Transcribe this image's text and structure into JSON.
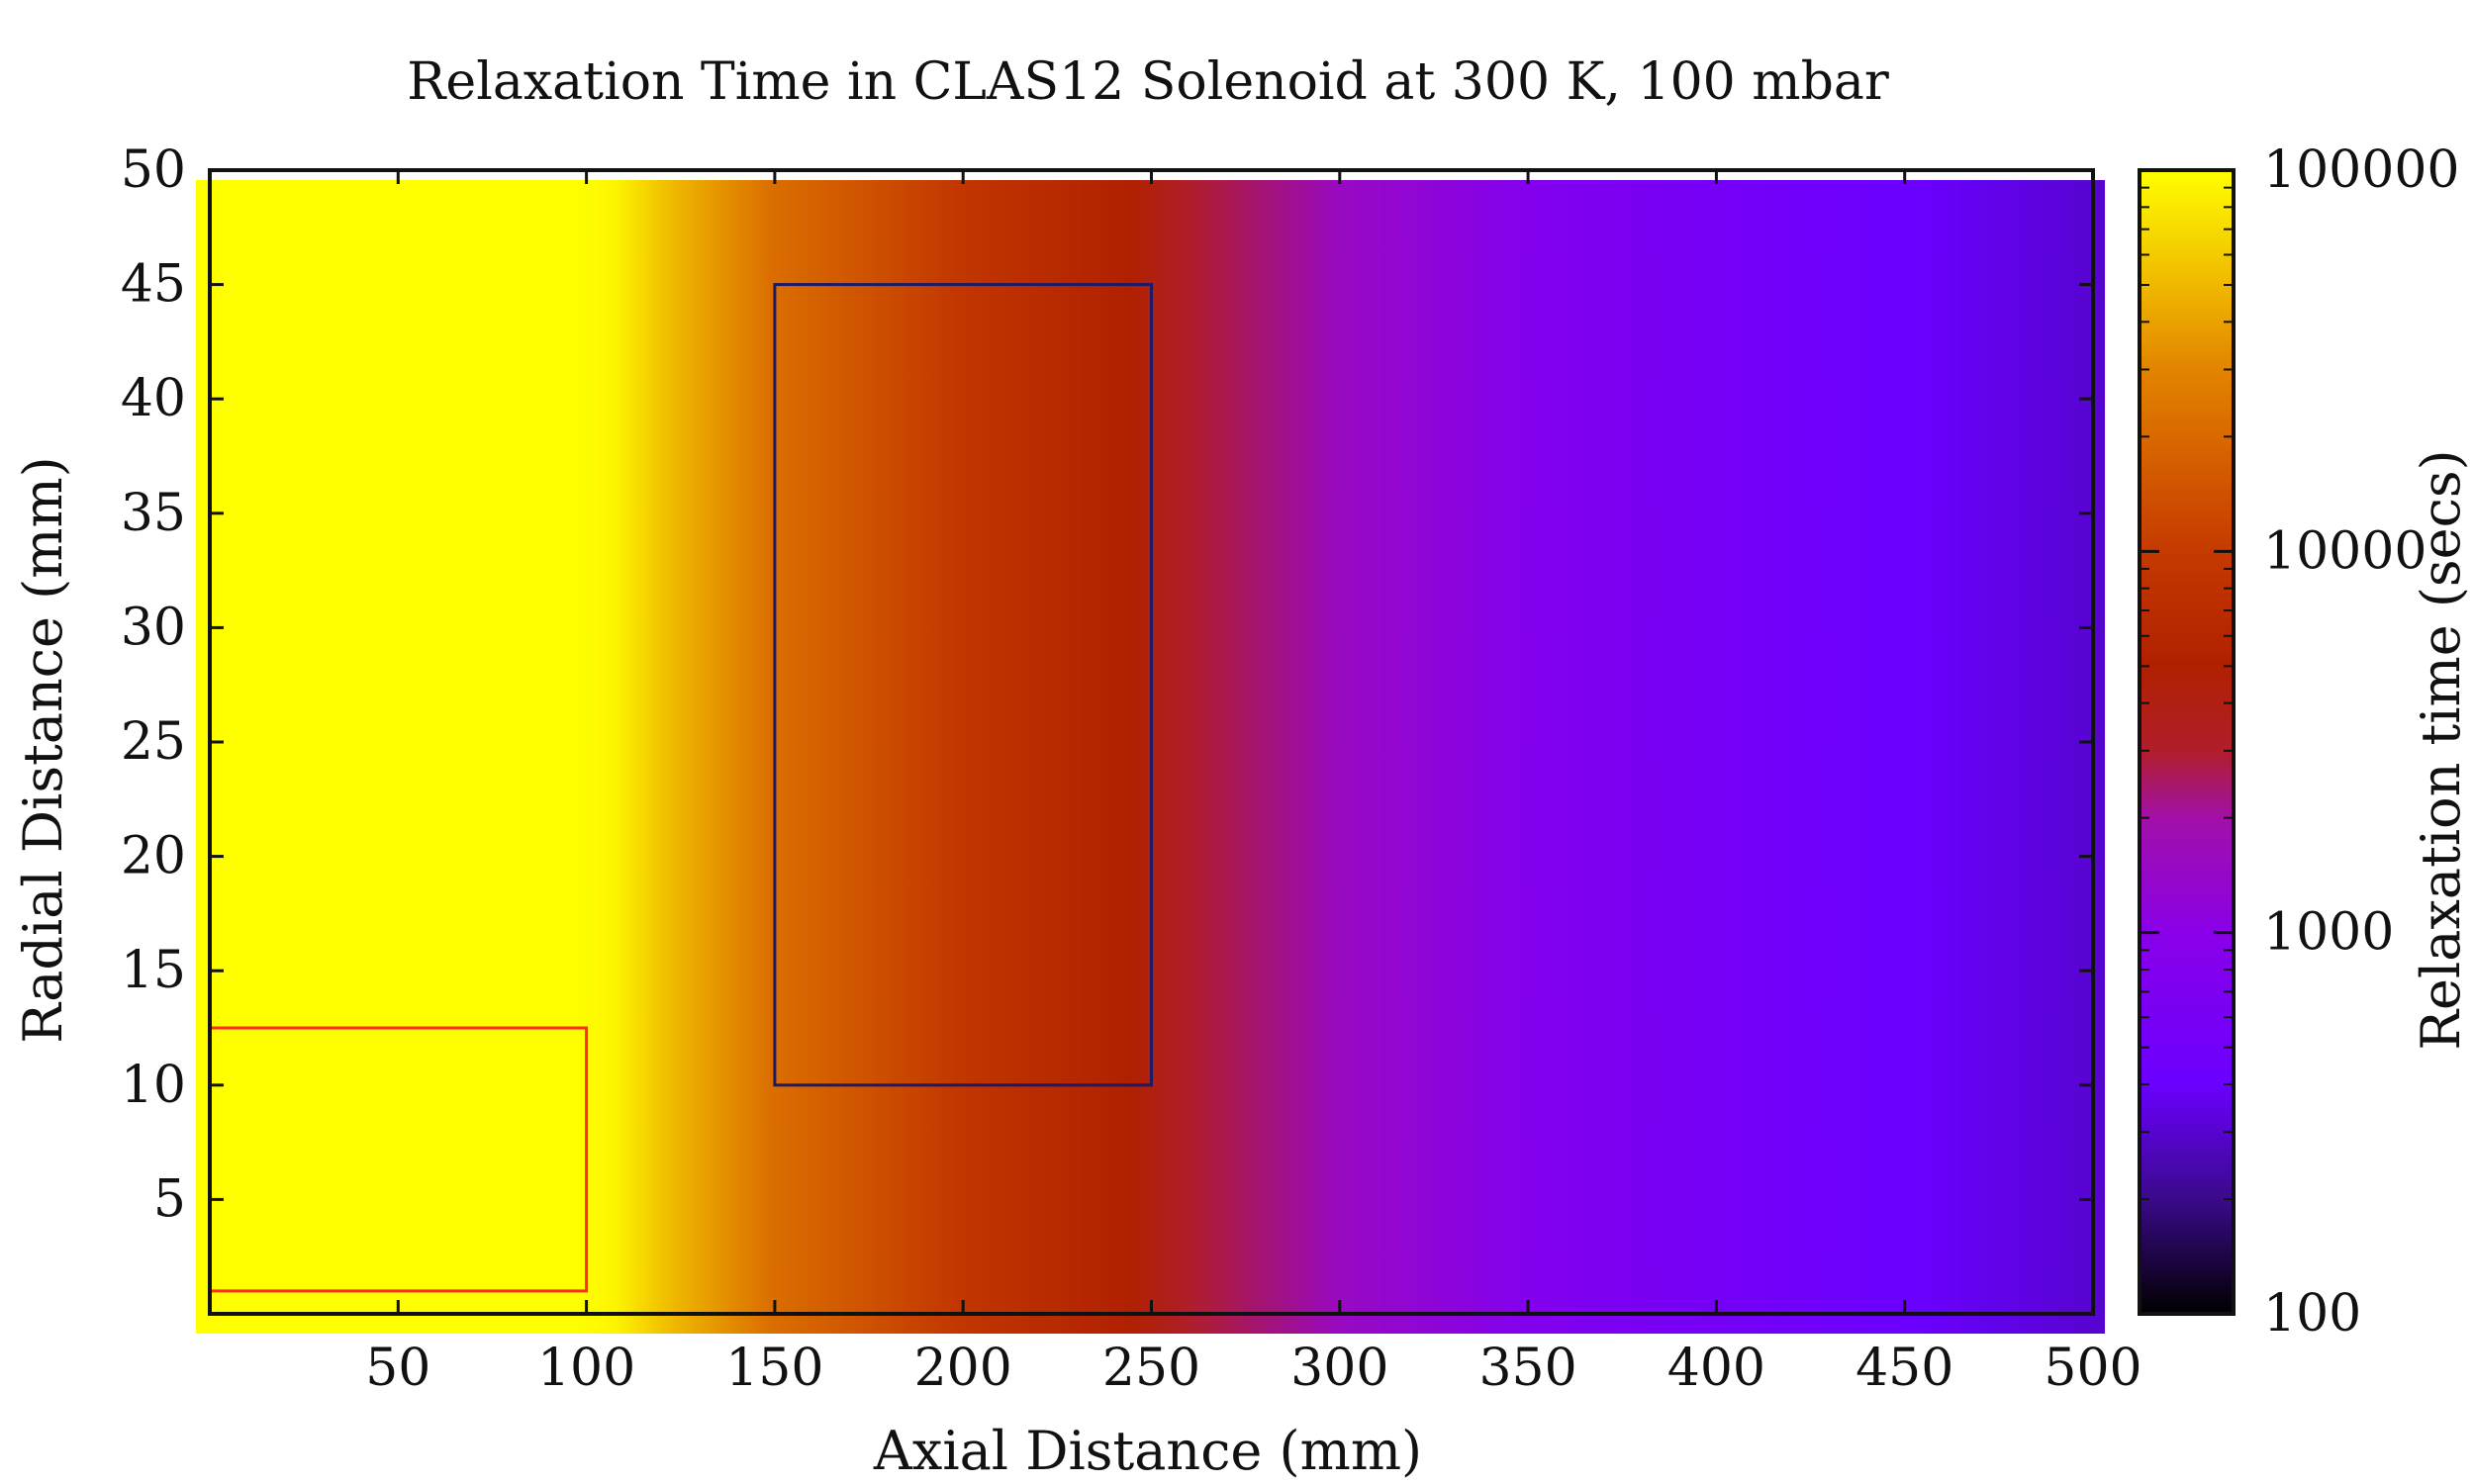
{
  "chart_data": {
    "type": "heatmap",
    "title": "Relaxation Time in CLAS12 Solenoid at 300 K, 100 mbar",
    "xlabel": "Axial Distance (mm)",
    "ylabel": "Radial Distance (mm)",
    "colorbar_label": "Relaxation time (secs)",
    "xlim": [
      0,
      500
    ],
    "ylim": [
      0,
      50
    ],
    "x_ticks": [
      50,
      100,
      150,
      200,
      250,
      300,
      350,
      400,
      450,
      500
    ],
    "y_ticks": [
      5,
      10,
      15,
      20,
      25,
      30,
      35,
      40,
      45,
      50
    ],
    "colorbar_scale": "log",
    "colorbar_range": [
      100,
      100000
    ],
    "colorbar_ticks": [
      100,
      1000,
      10000,
      100000
    ],
    "colormap_stops": [
      {
        "value": 100,
        "color": "#000000"
      },
      {
        "value": 200,
        "color": "#3a0a8a"
      },
      {
        "value": 400,
        "color": "#6a00ff"
      },
      {
        "value": 1000,
        "color": "#8a00e8"
      },
      {
        "value": 2000,
        "color": "#a210a8"
      },
      {
        "value": 3000,
        "color": "#b01e2a"
      },
      {
        "value": 5000,
        "color": "#b02000"
      },
      {
        "value": 10000,
        "color": "#c53a00"
      },
      {
        "value": 30000,
        "color": "#e38400"
      },
      {
        "value": 100000,
        "color": "#ffff00"
      }
    ],
    "axial_profile": [
      {
        "x": 0,
        "tau": 100000
      },
      {
        "x": 100,
        "tau": 100000
      },
      {
        "x": 110,
        "tau": 90000
      },
      {
        "x": 125,
        "tau": 50000
      },
      {
        "x": 150,
        "tau": 22000
      },
      {
        "x": 200,
        "tau": 9000
      },
      {
        "x": 245,
        "tau": 5000
      },
      {
        "x": 260,
        "tau": 3000
      },
      {
        "x": 300,
        "tau": 1500
      },
      {
        "x": 350,
        "tau": 800
      },
      {
        "x": 400,
        "tau": 550
      },
      {
        "x": 450,
        "tau": 400
      },
      {
        "x": 500,
        "tau": 300
      }
    ],
    "regions": [
      {
        "x": [
          0,
          100
        ],
        "y": [
          1,
          12.5
        ],
        "color": "#ff2a2a"
      },
      {
        "x": [
          150,
          250
        ],
        "y": [
          10,
          45
        ],
        "color": "#1a1a66"
      }
    ]
  }
}
